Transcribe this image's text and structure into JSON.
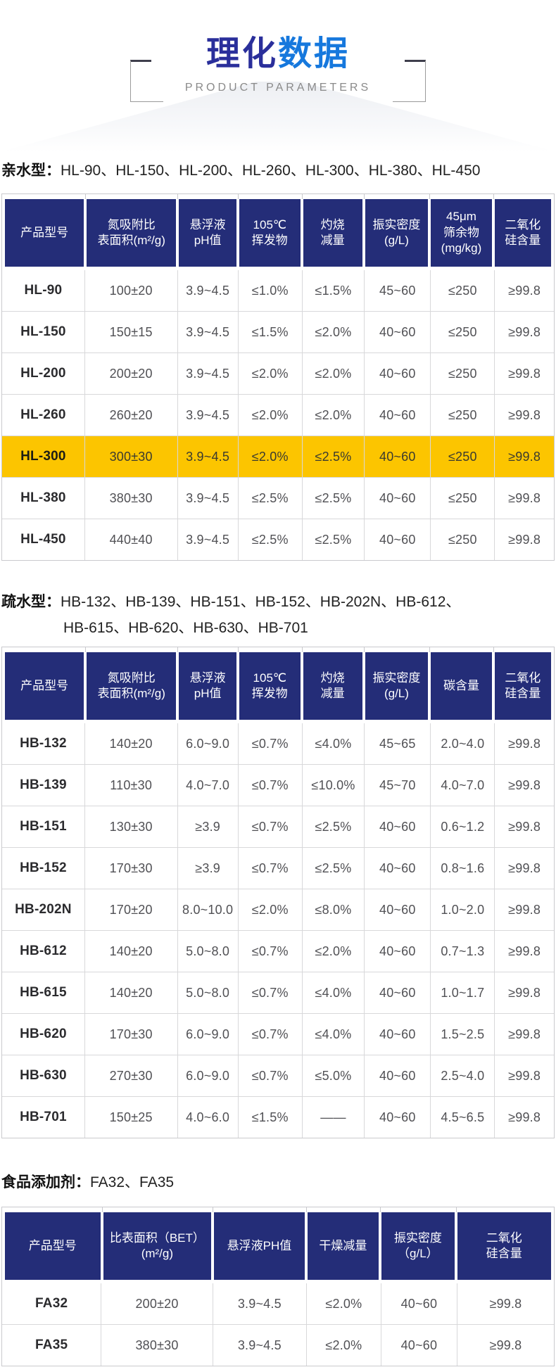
{
  "header": {
    "title_part1": "理化",
    "title_part2": "数据",
    "subtitle": "PRODUCT PARAMETERS"
  },
  "colors": {
    "table_header_navy": "#242D78",
    "title_navy": "#2A2F9B",
    "title_blue": "#1678DD",
    "highlight_yellow": "#FCC500",
    "grid_gray": "#D8D8DA",
    "subtitle_gray": "#8A8A8A"
  },
  "sections": [
    {
      "label": "亲水型：",
      "models_line1": "HL-90、HL-150、HL-200、HL-260、HL-300、HL-380、HL-450",
      "models_line2": "",
      "table": {
        "headers": [
          "产品型号",
          "氮吸附比\n表面积(m²/g)",
          "悬浮液\npH值",
          "105℃\n挥发物",
          "灼烧\n减量",
          "振实密度\n(g/L)",
          "45μm\n筛余物\n(mg/kg)",
          "二氧化\n硅含量"
        ],
        "col_widths": [
          "14.9%",
          "16.8%",
          "11.0%",
          "11.6%",
          "11.3%",
          "12.0%",
          "11.6%",
          "10.8%"
        ],
        "highlight_model": "HL-300",
        "rows": [
          {
            "model": "HL-90",
            "values": [
              "100±20",
              "3.9~4.5",
              "≤1.0%",
              "≤1.5%",
              "45~60",
              "≤250",
              "≥99.8"
            ]
          },
          {
            "model": "HL-150",
            "values": [
              "150±15",
              "3.9~4.5",
              "≤1.5%",
              "≤2.0%",
              "40~60",
              "≤250",
              "≥99.8"
            ]
          },
          {
            "model": "HL-200",
            "values": [
              "200±20",
              "3.9~4.5",
              "≤2.0%",
              "≤2.0%",
              "40~60",
              "≤250",
              "≥99.8"
            ]
          },
          {
            "model": "HL-260",
            "values": [
              "260±20",
              "3.9~4.5",
              "≤2.0%",
              "≤2.0%",
              "40~60",
              "≤250",
              "≥99.8"
            ]
          },
          {
            "model": "HL-300",
            "values": [
              "300±30",
              "3.9~4.5",
              "≤2.0%",
              "≤2.5%",
              "40~60",
              "≤250",
              "≥99.8"
            ]
          },
          {
            "model": "HL-380",
            "values": [
              "380±30",
              "3.9~4.5",
              "≤2.5%",
              "≤2.5%",
              "40~60",
              "≤250",
              "≥99.8"
            ]
          },
          {
            "model": "HL-450",
            "values": [
              "440±40",
              "3.9~4.5",
              "≤2.5%",
              "≤2.5%",
              "40~60",
              "≤250",
              "≥99.8"
            ]
          }
        ]
      }
    },
    {
      "label": "疏水型：",
      "models_line1": "HB-132、HB-139、HB-151、HB-152、HB-202N、HB-612、",
      "models_line2": "HB-615、HB-620、HB-630、HB-701",
      "table": {
        "headers": [
          "产品型号",
          "氮吸附比\n表面积(m²/g)",
          "悬浮液\npH值",
          "105℃\n挥发物",
          "灼烧\n减量",
          "振实密度\n(g/L)",
          "碳含量",
          "二氧化\n硅含量"
        ],
        "col_widths": [
          "14.9%",
          "16.8%",
          "11.0%",
          "11.6%",
          "11.3%",
          "12.0%",
          "11.6%",
          "10.8%"
        ],
        "highlight_model": "",
        "rows": [
          {
            "model": "HB-132",
            "values": [
              "140±20",
              "6.0~9.0",
              "≤0.7%",
              "≤4.0%",
              "45~65",
              "2.0~4.0",
              "≥99.8"
            ]
          },
          {
            "model": "HB-139",
            "values": [
              "110±30",
              "4.0~7.0",
              "≤0.7%",
              "≤10.0%",
              "45~70",
              "4.0~7.0",
              "≥99.8"
            ]
          },
          {
            "model": "HB-151",
            "values": [
              "130±30",
              "≥3.9",
              "≤0.7%",
              "≤2.5%",
              "40~60",
              "0.6~1.2",
              "≥99.8"
            ]
          },
          {
            "model": "HB-152",
            "values": [
              "170±30",
              "≥3.9",
              "≤0.7%",
              "≤2.5%",
              "40~60",
              "0.8~1.6",
              "≥99.8"
            ]
          },
          {
            "model": "HB-202N",
            "values": [
              "170±20",
              "8.0~10.0",
              "≤2.0%",
              "≤8.0%",
              "40~60",
              "1.0~2.0",
              "≥99.8"
            ]
          },
          {
            "model": "HB-612",
            "values": [
              "140±20",
              "5.0~8.0",
              "≤0.7%",
              "≤2.0%",
              "40~60",
              "0.7~1.3",
              "≥99.8"
            ]
          },
          {
            "model": "HB-615",
            "values": [
              "140±20",
              "5.0~8.0",
              "≤0.7%",
              "≤4.0%",
              "40~60",
              "1.0~1.7",
              "≥99.8"
            ]
          },
          {
            "model": "HB-620",
            "values": [
              "170±30",
              "6.0~9.0",
              "≤0.7%",
              "≤4.0%",
              "40~60",
              "1.5~2.5",
              "≥99.8"
            ]
          },
          {
            "model": "HB-630",
            "values": [
              "270±30",
              "6.0~9.0",
              "≤0.7%",
              "≤5.0%",
              "40~60",
              "2.5~4.0",
              "≥99.8"
            ]
          },
          {
            "model": "HB-701",
            "values": [
              "150±25",
              "4.0~6.0",
              "≤1.5%",
              "——",
              "40~60",
              "4.5~6.5",
              "≥99.8"
            ]
          }
        ]
      }
    },
    {
      "label": "食品添加剂：",
      "models_line1": "FA32、FA35",
      "models_line2": "",
      "table": {
        "headers": [
          "产品型号",
          "比表面积（BET）\n(m²/g)",
          "悬浮液PH值",
          "干燥减量",
          "振实密度\n（g/L）",
          "二氧化\n硅含量"
        ],
        "col_widths": [
          "17.9%",
          "20.2%",
          "17.0%",
          "13.5%",
          "13.8%",
          "17.6%"
        ],
        "highlight_model": "",
        "rows": [
          {
            "model": "FA32",
            "values": [
              "200±20",
              "3.9~4.5",
              "≤2.0%",
              "40~60",
              "≥99.8"
            ]
          },
          {
            "model": "FA35",
            "values": [
              "380±30",
              "3.9~4.5",
              "≤2.0%",
              "40~60",
              "≥99.8"
            ]
          }
        ]
      }
    }
  ]
}
